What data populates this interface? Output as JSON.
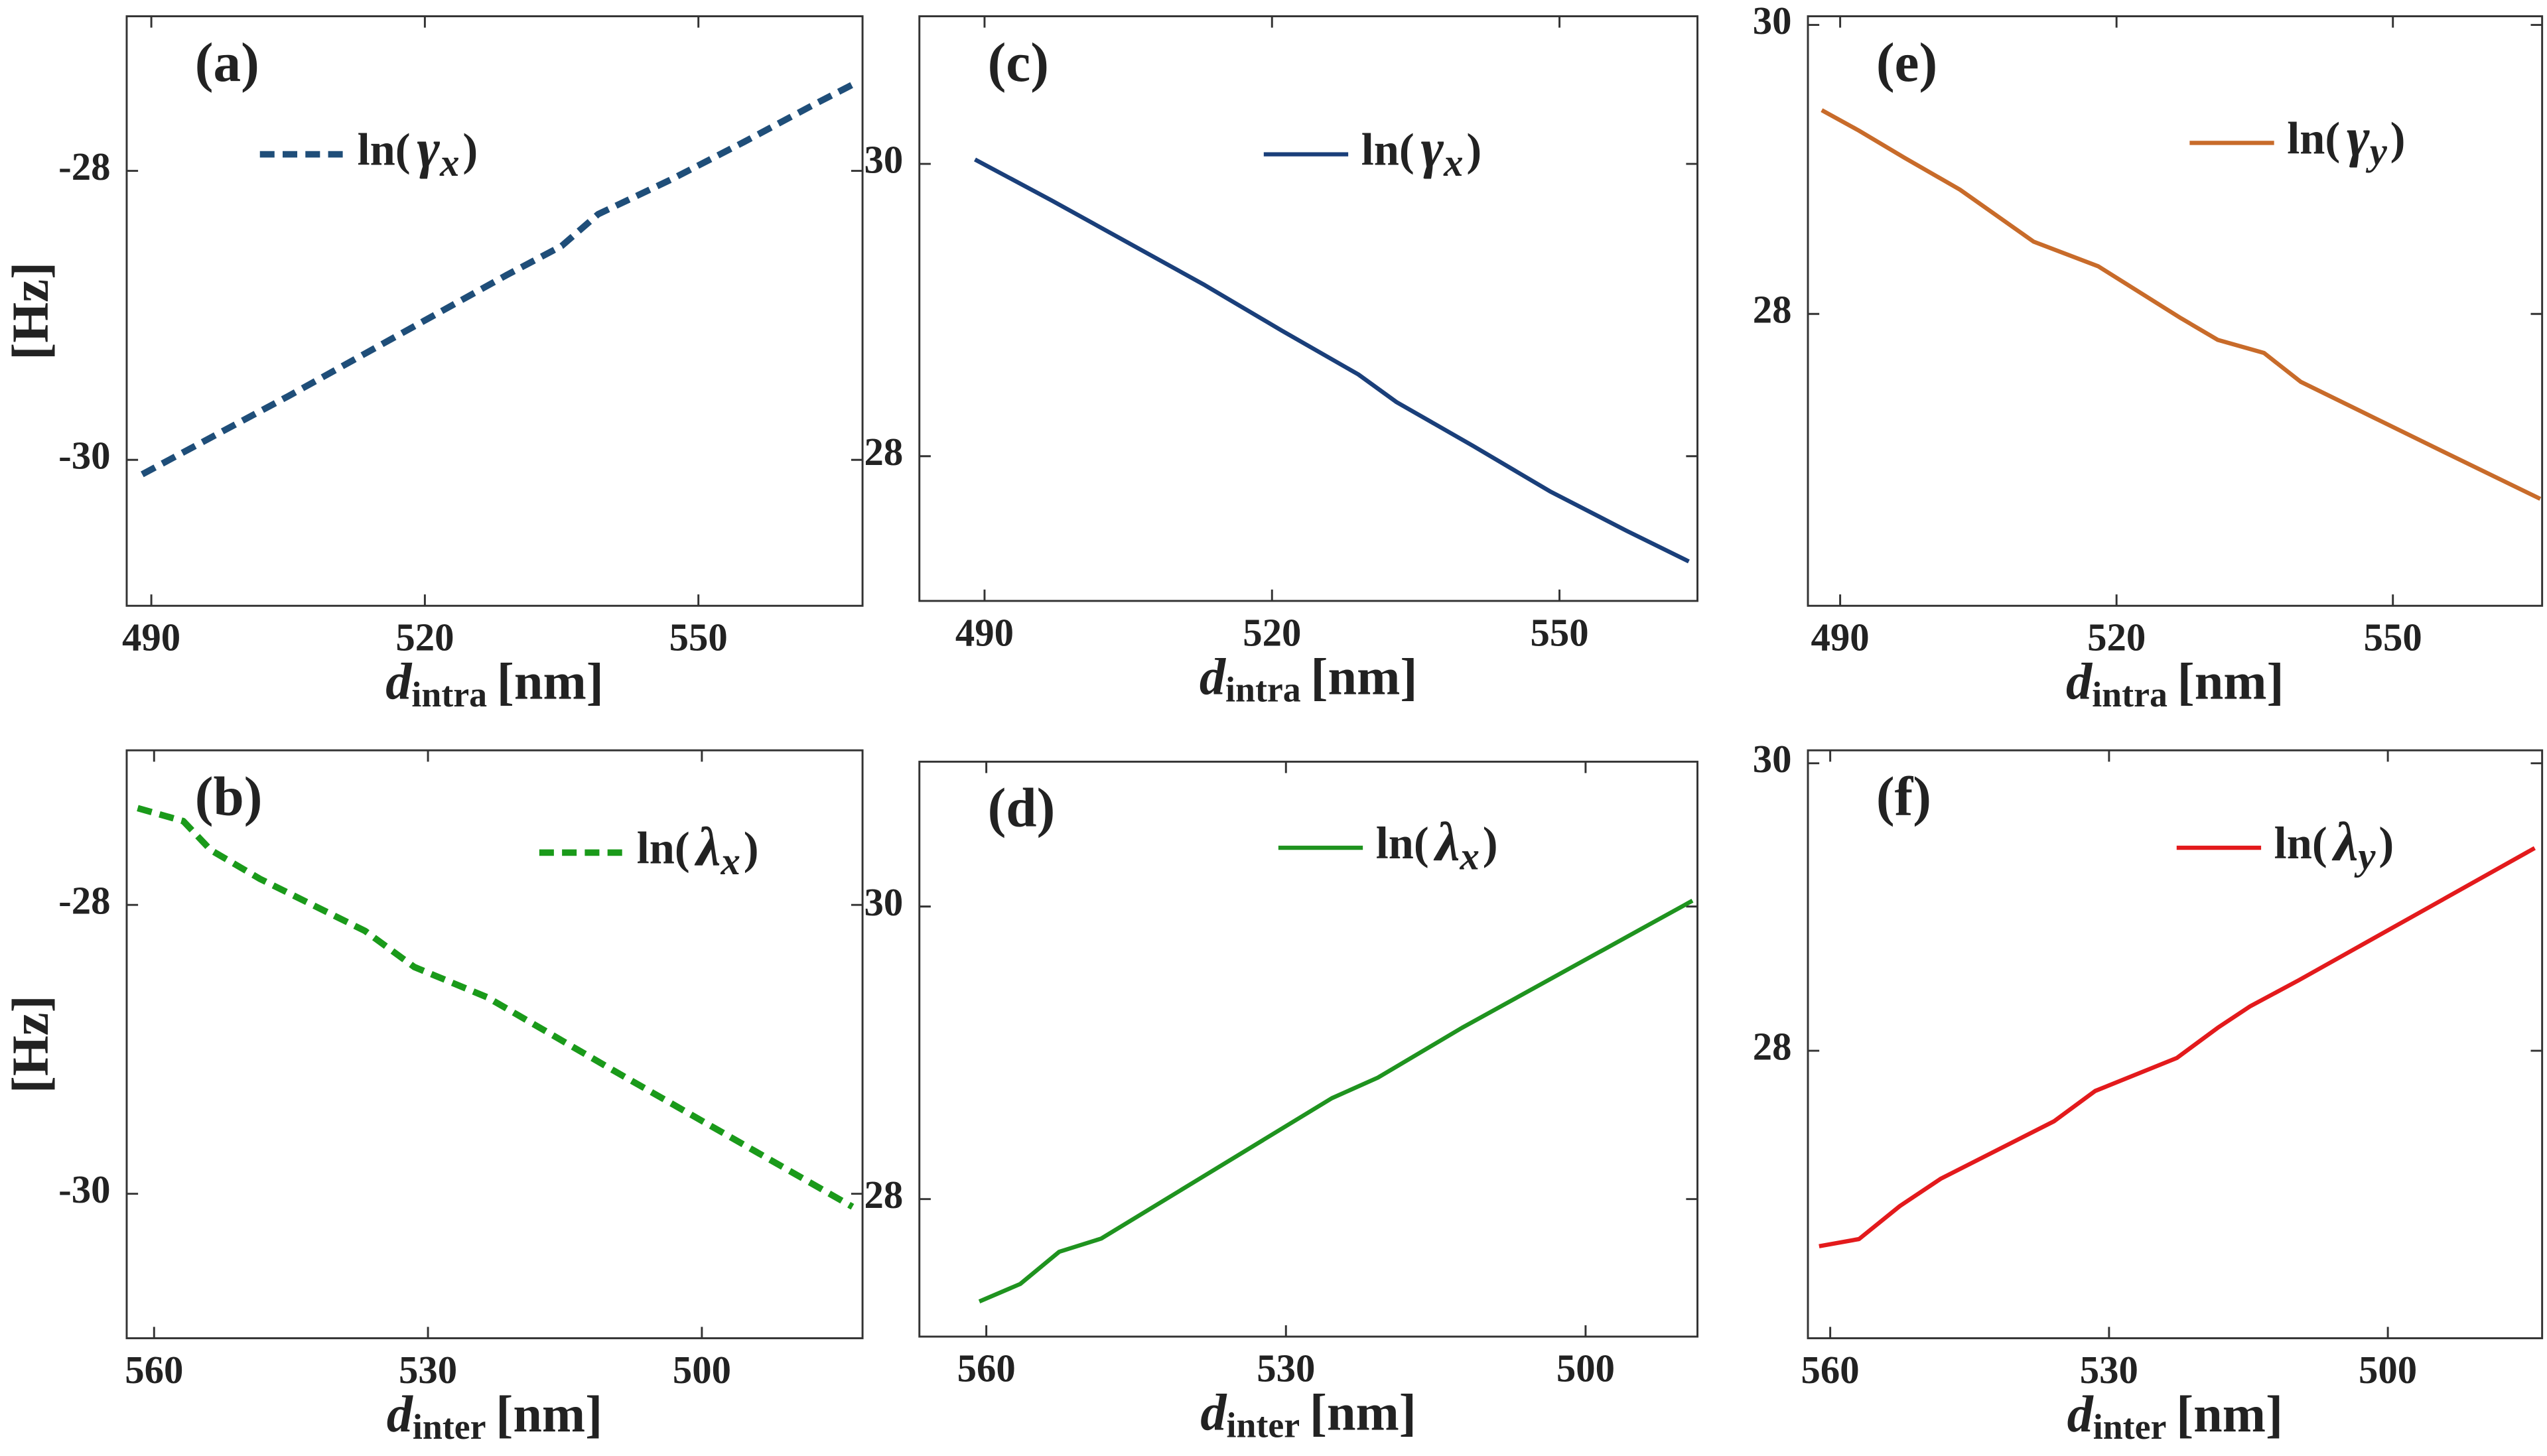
{
  "chart_data": [
    {
      "type": "line",
      "panel_label": "(a)",
      "xlabel": [
        "d",
        "intra",
        "[nm]"
      ],
      "ylabel": "[Hz]",
      "x": [
        489,
        497,
        505,
        513,
        521,
        529,
        535,
        539,
        547,
        555,
        563,
        567
      ],
      "series": [
        {
          "name": [
            "ln(",
            "γ",
            "x",
            ")"
          ],
          "color": "#1f4e79",
          "line_style": "dashed",
          "values": [
            -30.1,
            -29.83,
            -29.56,
            -29.28,
            -29.0,
            -28.72,
            -28.52,
            -28.3,
            -28.06,
            -27.8,
            -27.53,
            -27.4
          ]
        }
      ],
      "xlim": [
        487.3,
        568
      ],
      "ylim": [
        -31.01,
        -26.93
      ],
      "xticks": [
        490,
        520,
        550
      ],
      "yticks": [
        -30,
        -28
      ]
    },
    {
      "type": "line",
      "panel_label": "(b)",
      "xlabel": [
        "d",
        "inter",
        "[nm]"
      ],
      "ylabel": "[Hz]",
      "x": [
        561.8,
        556.8,
        553.8,
        548.4,
        536.9,
        531.5,
        523.5,
        509.3,
        496.8,
        483.5
      ],
      "series": [
        {
          "name": [
            "ln(",
            "λ",
            "x",
            ")"
          ],
          "color": "#1a9a1a",
          "line_style": "dashed",
          "values": [
            -27.33,
            -27.42,
            -27.62,
            -27.82,
            -28.18,
            -28.43,
            -28.64,
            -29.16,
            -29.61,
            -30.09
          ]
        }
      ],
      "xlim": [
        563,
        482.4
      ],
      "ylim": [
        -31.0,
        -26.93
      ],
      "xticks": [
        560,
        530,
        500
      ],
      "yticks": [
        -30,
        -28
      ]
    },
    {
      "type": "line",
      "panel_label": "(c)",
      "xlabel": [
        "d",
        "intra",
        "[nm]"
      ],
      "x": [
        489,
        497,
        505,
        513,
        521,
        529,
        533,
        541,
        549,
        557,
        563.5
      ],
      "series": [
        {
          "name": [
            "ln(",
            "γ",
            "x",
            ")"
          ],
          "color": "#1a3f7a",
          "line_style": "solid",
          "values": [
            30.03,
            29.75,
            29.46,
            29.17,
            28.86,
            28.56,
            28.37,
            28.07,
            27.76,
            27.49,
            27.28
          ]
        }
      ],
      "xlim": [
        483.2,
        564.4
      ],
      "ylim": [
        27.01,
        31.01
      ],
      "xticks": [
        490,
        520,
        550
      ],
      "yticks": [
        28,
        30
      ]
    },
    {
      "type": "line",
      "panel_label": "(d)",
      "xlabel": [
        "d",
        "inter",
        "[nm]"
      ],
      "x": [
        560.7,
        556.6,
        552.7,
        548.5,
        525.4,
        520.8,
        512.4,
        489.3
      ],
      "series": [
        {
          "name": [
            "ln(",
            "λ",
            "x",
            ")"
          ],
          "color": "#1f931f",
          "line_style": "solid",
          "values": [
            27.3,
            27.42,
            27.64,
            27.73,
            28.69,
            28.83,
            29.17,
            30.04
          ]
        }
      ],
      "xlim": [
        566.7,
        488.8
      ],
      "ylim": [
        27.06,
        30.99
      ],
      "xticks": [
        560,
        530,
        500
      ],
      "yticks": [
        28,
        30
      ]
    },
    {
      "type": "line",
      "panel_label": "(e)",
      "xlabel": [
        "d",
        "intra",
        "[nm]"
      ],
      "x": [
        488,
        492,
        497,
        503,
        511,
        518,
        527,
        531,
        536,
        540,
        548,
        556,
        566
      ],
      "series": [
        {
          "name": [
            "ln(",
            "γ",
            "y",
            ")"
          ],
          "color": "#c86b2a",
          "line_style": "solid",
          "values": [
            29.41,
            29.27,
            29.08,
            28.86,
            28.5,
            28.33,
            27.97,
            27.82,
            27.73,
            27.53,
            27.28,
            27.03,
            26.72
          ]
        }
      ],
      "xlim": [
        486.5,
        566.2
      ],
      "ylim": [
        25.98,
        30.06
      ],
      "xticks": [
        490,
        520,
        550
      ],
      "yticks": [
        28,
        30
      ]
    },
    {
      "type": "line",
      "panel_label": "(f)",
      "xlabel": [
        "d",
        "inter",
        "[nm]"
      ],
      "x": [
        561.2,
        556.9,
        552.5,
        548.1,
        535.9,
        531.5,
        522.7,
        518.3,
        514.8,
        509.6,
        484.2
      ],
      "series": [
        {
          "name": [
            "ln(",
            "λ",
            "y",
            ")"
          ],
          "color": "#e31a1c",
          "line_style": "solid",
          "values": [
            26.64,
            26.69,
            26.92,
            27.11,
            27.51,
            27.72,
            27.95,
            28.16,
            28.31,
            28.49,
            29.41
          ]
        }
      ],
      "xlim": [
        562.4,
        483.4
      ],
      "ylim": [
        26.0,
        30.09
      ],
      "xticks": [
        560,
        530,
        500
      ],
      "yticks": [
        28,
        30
      ]
    }
  ]
}
